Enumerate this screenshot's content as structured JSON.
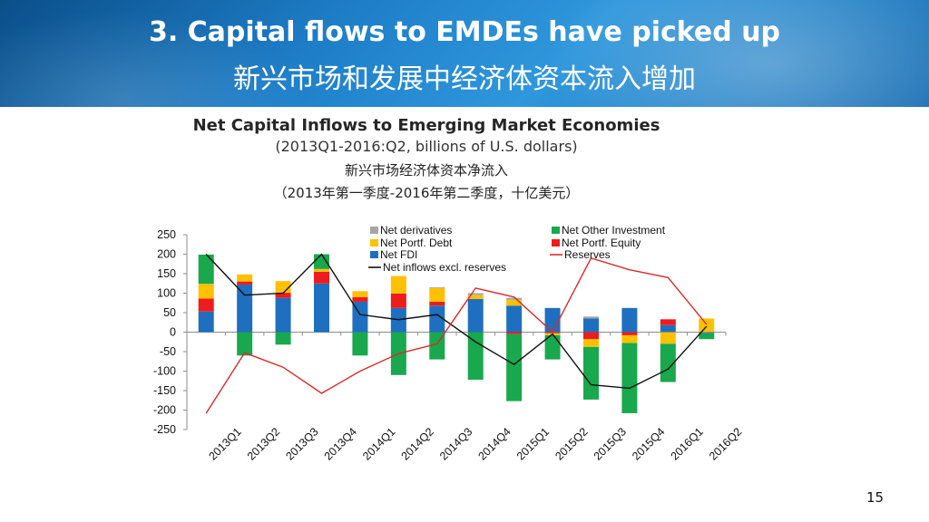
{
  "slide": {
    "title_en": "3. Capital flows to EMDEs have picked up",
    "title_zh": "新兴市场和发展中经济体资本流入增加",
    "page_number": "15"
  },
  "chart_data": {
    "type": "bar",
    "title": "Net Capital Inflows to Emerging Market Economies",
    "subtitle": "(2013Q1-2016:Q2, billions of U.S. dollars)",
    "title_zh": "新兴市场经济体资本净流入",
    "subtitle_zh": "（2013年第一季度-2016年第二季度，十亿美元）",
    "categories": [
      "2013Q1",
      "2013Q2",
      "2013Q3",
      "2013Q4",
      "2014Q1",
      "2014Q2",
      "2014Q3",
      "2014Q4",
      "2015Q1",
      "2015Q2",
      "2015Q3",
      "2015Q4",
      "2016Q1",
      "2016Q2"
    ],
    "ylim": [
      -250,
      250
    ],
    "yticks": [
      "250",
      "200",
      "150",
      "100",
      "50",
      "0",
      "-50",
      "-100",
      "-150",
      "-200",
      "-250"
    ],
    "series": [
      {
        "name": "Net FDI",
        "kind": "bar",
        "color": "#1f6fc0",
        "values": [
          53,
          122,
          88,
          125,
          78,
          62,
          68,
          85,
          68,
          62,
          35,
          62,
          18,
          -3
        ]
      },
      {
        "name": "Net Portf. Equity",
        "kind": "bar",
        "color": "#ee1c1c",
        "values": [
          33,
          8,
          13,
          30,
          12,
          37,
          10,
          0,
          -5,
          -3,
          -18,
          -8,
          15,
          0
        ]
      },
      {
        "name": "Net Portf. Debt",
        "kind": "bar",
        "color": "#ffc000",
        "values": [
          38,
          18,
          30,
          7,
          15,
          45,
          35,
          10,
          15,
          -5,
          -20,
          -20,
          -30,
          35
        ]
      },
      {
        "name": "Net Other Investment",
        "kind": "bar",
        "color": "#19a84d",
        "values": [
          75,
          -60,
          -32,
          38,
          -60,
          -110,
          -70,
          -122,
          -172,
          -62,
          -135,
          -180,
          -98,
          -15
        ]
      },
      {
        "name": "Net derivatives",
        "kind": "bar",
        "color": "#a6a6a6",
        "values": [
          0,
          0,
          0,
          0,
          0,
          0,
          2,
          5,
          5,
          0,
          5,
          0,
          0,
          0
        ]
      },
      {
        "name": "Net inflows excl. reserves",
        "kind": "line",
        "color": "#111111",
        "values": [
          200,
          95,
          100,
          200,
          45,
          32,
          45,
          -25,
          -83,
          -5,
          -135,
          -144,
          -95,
          15
        ]
      },
      {
        "name": "Reserves",
        "kind": "line",
        "color": "#d92b2b",
        "values": [
          -208,
          -53,
          -90,
          -157,
          -100,
          -55,
          -30,
          113,
          90,
          0,
          190,
          160,
          140,
          20
        ]
      }
    ],
    "legend": [
      {
        "name": "Net derivatives",
        "color": "#a6a6a6",
        "kind": "bar"
      },
      {
        "name": "Net Other Investment",
        "color": "#19a84d",
        "kind": "bar"
      },
      {
        "name": "Net Portf. Debt",
        "color": "#ffc000",
        "kind": "bar"
      },
      {
        "name": "Net Portf. Equity",
        "color": "#ee1c1c",
        "kind": "bar"
      },
      {
        "name": "Net FDI",
        "color": "#1f6fc0",
        "kind": "bar"
      },
      {
        "name": "Reserves",
        "color": "#d92b2b",
        "kind": "line"
      },
      {
        "name": "Net inflows excl. reserves",
        "color": "#111111",
        "kind": "line"
      }
    ],
    "legend_placement": "top",
    "grid": false
  }
}
